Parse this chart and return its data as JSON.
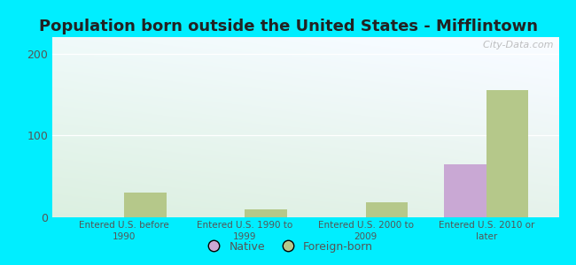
{
  "title": "Population born outside the United States - Mifflintown",
  "categories": [
    "Entered U.S. before\n1990",
    "Entered U.S. 1990 to\n1999",
    "Entered U.S. 2000 to\n2009",
    "Entered U.S. 2010 or\nlater"
  ],
  "native_values": [
    0,
    0,
    0,
    65
  ],
  "foreign_values": [
    30,
    10,
    18,
    155
  ],
  "native_color": "#c9a8d4",
  "foreign_color": "#b5c88a",
  "background_color": "#00eeff",
  "ylim": [
    0,
    220
  ],
  "yticks": [
    0,
    100,
    200
  ],
  "bar_width": 0.35,
  "title_fontsize": 13,
  "watermark": "  City-Data.com",
  "legend_native": "Native",
  "legend_foreign": "Foreign-born",
  "tick_color": "#555555",
  "title_color": "#222222"
}
